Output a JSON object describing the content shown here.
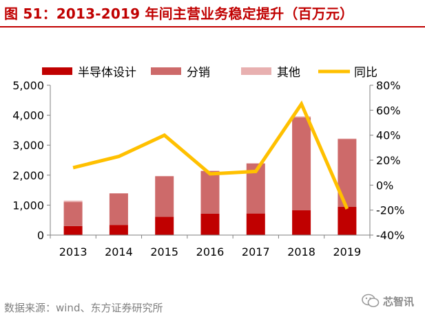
{
  "title": "图 51：2013-2019 年间主营业务稳定提升（百万元）",
  "source": "数据来源：wind、东方证券研究所",
  "watermark": "芯智讯",
  "colors": {
    "title": "#c00000",
    "series_dark": "#c00000",
    "series_mid": "#cd6a6a",
    "series_light": "#e8b0b0",
    "line": "#ffc000"
  },
  "chart_data": {
    "type": "bar",
    "stacked": true,
    "categories": [
      "2013",
      "2014",
      "2015",
      "2016",
      "2017",
      "2018",
      "2019"
    ],
    "series": [
      {
        "name": "半导体设计",
        "type": "bar",
        "values": [
          300,
          340,
          610,
          710,
          720,
          830,
          940
        ]
      },
      {
        "name": "分销",
        "type": "bar",
        "values": [
          800,
          1050,
          1350,
          1430,
          1670,
          3100,
          2260
        ]
      },
      {
        "name": "其他",
        "type": "bar",
        "values": [
          50,
          10,
          10,
          10,
          10,
          30,
          20
        ]
      },
      {
        "name": "同比",
        "type": "line",
        "axis": "right",
        "values": [
          14,
          23,
          40,
          9,
          11,
          65,
          -19
        ]
      }
    ],
    "y_left": {
      "min": 0,
      "max": 5000,
      "ticks": [
        "0",
        "1,000",
        "2,000",
        "3,000",
        "4,000",
        "5,000"
      ]
    },
    "y_right": {
      "min": -40,
      "max": 80,
      "ticks": [
        "-40%",
        "-20%",
        "0%",
        "20%",
        "40%",
        "60%",
        "80%"
      ]
    },
    "legend_position": "top",
    "grid": false
  }
}
